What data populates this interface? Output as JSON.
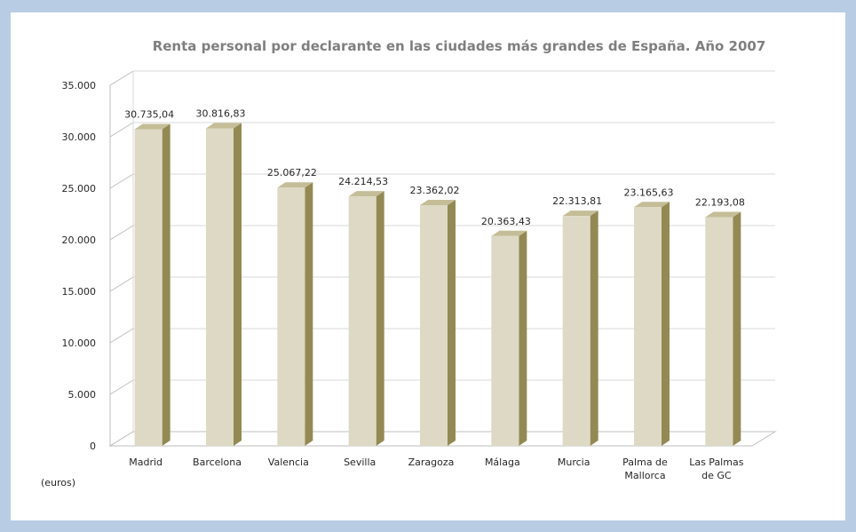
{
  "chart_data": {
    "type": "bar",
    "title": "Renta personal por declarante en las ciudades más grandes de España. Año 2007",
    "ylabel": "(euros)",
    "xlabel": "",
    "ylim": [
      0,
      35000
    ],
    "yticks": [
      "0",
      "5.000",
      "10.000",
      "15.000",
      "20.000",
      "25.000",
      "30.000",
      "35.000"
    ],
    "grid": true,
    "three_d": true,
    "categories": [
      [
        "Madrid"
      ],
      [
        "Barcelona"
      ],
      [
        "Valencia"
      ],
      [
        "Sevilla"
      ],
      [
        "Zaragoza"
      ],
      [
        "Málaga"
      ],
      [
        "Murcia"
      ],
      [
        "Palma de",
        "Mallorca"
      ],
      [
        "Las Palmas",
        "de GC"
      ]
    ],
    "values": [
      30735.04,
      30816.83,
      25067.22,
      24214.53,
      23362.02,
      20363.43,
      22313.81,
      23165.63,
      22193.08
    ],
    "data_labels": [
      "30.735,04",
      "30.816,83",
      "25.067,22",
      "24.214,53",
      "23.362,02",
      "20.363,43",
      "22.313,81",
      "23.165,63",
      "22.193,08"
    ],
    "colors": {
      "bar_front": "#ddd9c4",
      "bar_side": "#938953",
      "bar_top": "#c4bd97",
      "grid": "#d9d9d9",
      "axis": "#bfbfbf",
      "title": "#7f7f7f",
      "frame_border": "#b8cce4"
    }
  }
}
